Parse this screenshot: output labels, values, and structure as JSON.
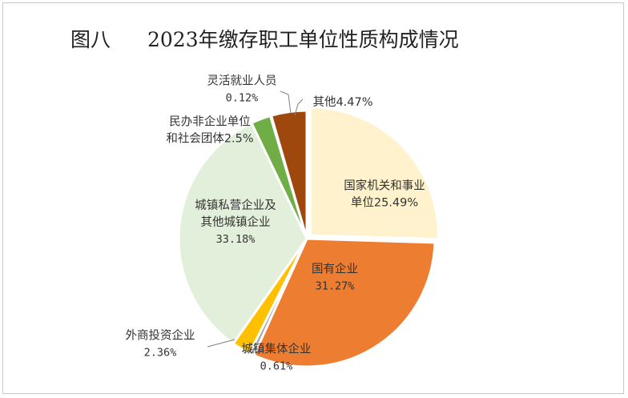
{
  "figure": {
    "number": "图八",
    "title": "2023年缴存职工单位性质构成情况"
  },
  "chart_data": {
    "type": "pie",
    "title": "2023年缴存职工单位性质构成情况",
    "slices": [
      {
        "label_lines": [
          "国家机关和事业",
          "单位25.49%"
        ],
        "value": 25.49,
        "color": "#FFF2CC"
      },
      {
        "label_lines": [
          "国有企业",
          "31.27%"
        ],
        "value": 31.27,
        "color": "#ED7D31"
      },
      {
        "label_lines": [
          "城镇集体企业",
          "0.61%"
        ],
        "value": 0.61,
        "color": "#A5A5A5"
      },
      {
        "label_lines": [
          "外商投资企业",
          "2.36%"
        ],
        "value": 2.36,
        "color": "#FFC000"
      },
      {
        "label_lines": [
          "城镇私营企业及",
          "其他城镇企业",
          "33.18%"
        ],
        "value": 33.18,
        "color": "#E2EFDA"
      },
      {
        "label_lines": [
          "民办非企业单位",
          "和社会团体2.5%"
        ],
        "value": 2.5,
        "color": "#70AD47"
      },
      {
        "label_lines": [
          "灵活就业人员",
          "0.12%"
        ],
        "value": 0.12,
        "color": "#A9D18E"
      },
      {
        "label_lines": [
          "其他4.47%"
        ],
        "value": 4.47,
        "color": "#9E480E"
      }
    ]
  }
}
